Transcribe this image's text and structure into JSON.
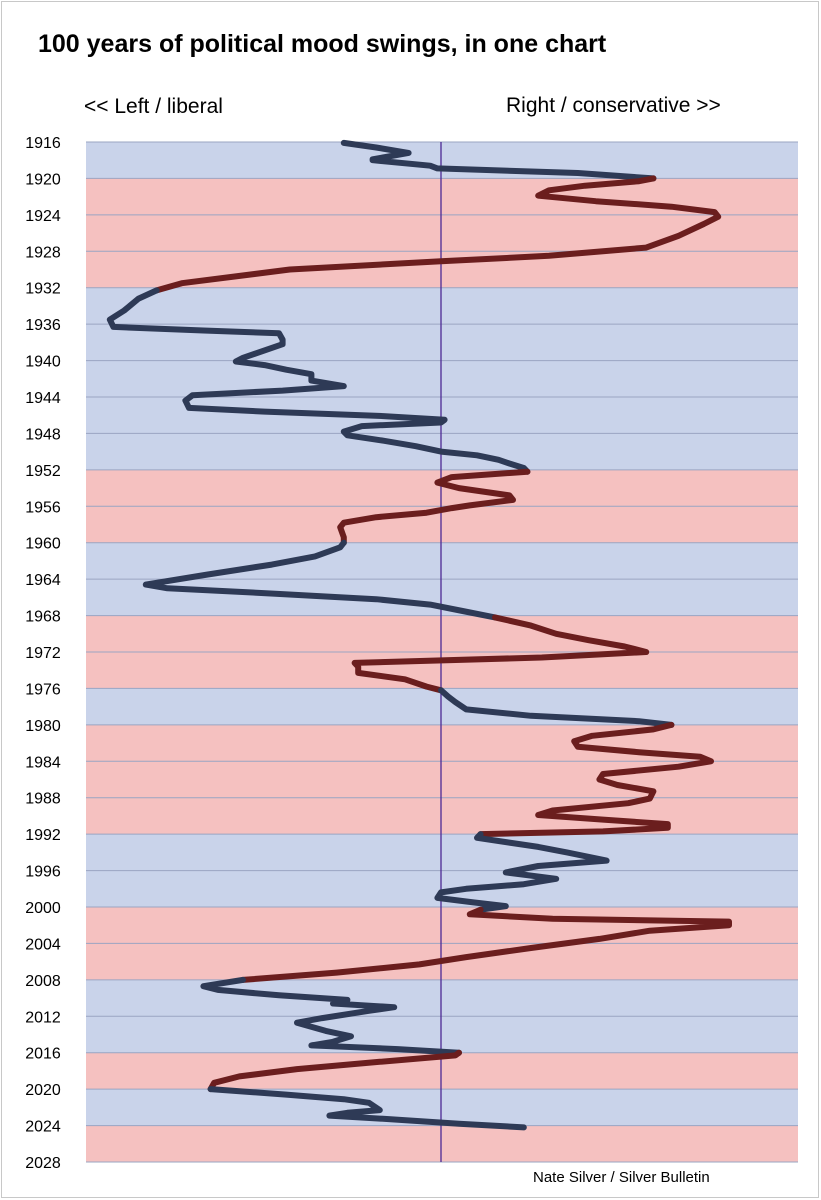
{
  "chart_data": {
    "type": "line",
    "title": "100 years of political mood swings, in one chart",
    "left_label": "<< Left / liberal",
    "right_label": "Right / conservative >>",
    "credit": "Nate Silver / Silver Bulletin",
    "y_axis": {
      "min": 1916,
      "max": 2028,
      "step": 4,
      "reversed": true,
      "tick_labels": [
        "1916",
        "1920",
        "1924",
        "1928",
        "1932",
        "1936",
        "1940",
        "1944",
        "1948",
        "1952",
        "1956",
        "1960",
        "1964",
        "1968",
        "1972",
        "1976",
        "1980",
        "1984",
        "1988",
        "1992",
        "1996",
        "2000",
        "2004",
        "2008",
        "2012",
        "2016",
        "2020",
        "2024",
        "2028"
      ]
    },
    "x_axis": {
      "min": -1.0,
      "max": 1.0,
      "center": 0,
      "tick_labels": []
    },
    "grid": true,
    "party_bands": [
      {
        "from": 1916,
        "to": 1920,
        "party": "D"
      },
      {
        "from": 1920,
        "to": 1932,
        "party": "R"
      },
      {
        "from": 1932,
        "to": 1952,
        "party": "D"
      },
      {
        "from": 1952,
        "to": 1960,
        "party": "R"
      },
      {
        "from": 1960,
        "to": 1968,
        "party": "D"
      },
      {
        "from": 1968,
        "to": 1976,
        "party": "R"
      },
      {
        "from": 1976,
        "to": 1980,
        "party": "D"
      },
      {
        "from": 1980,
        "to": 1992,
        "party": "R"
      },
      {
        "from": 1992,
        "to": 2000,
        "party": "D"
      },
      {
        "from": 2000,
        "to": 2008,
        "party": "R"
      },
      {
        "from": 2008,
        "to": 2016,
        "party": "D"
      },
      {
        "from": 2016,
        "to": 2020,
        "party": "R"
      },
      {
        "from": 2020,
        "to": 2024,
        "party": "D"
      },
      {
        "from": 2024,
        "to": 2028,
        "party": "R"
      }
    ],
    "series": [
      {
        "points": [
          [
            1916.1,
            -0.27
          ],
          [
            1916.6,
            -0.18
          ],
          [
            1917.2,
            -0.09
          ],
          [
            1917.9,
            -0.19
          ],
          [
            1918.0,
            -0.19
          ],
          [
            1918.6,
            -0.03
          ],
          [
            1918.9,
            -0.01
          ],
          [
            1919.4,
            0.38
          ],
          [
            1920.0,
            0.59
          ],
          [
            1920.3,
            0.55
          ],
          [
            1920.8,
            0.4
          ],
          [
            1921.3,
            0.3
          ],
          [
            1921.9,
            0.27
          ],
          [
            1922.5,
            0.43
          ],
          [
            1923.1,
            0.64
          ],
          [
            1923.7,
            0.76
          ],
          [
            1924.2,
            0.77
          ],
          [
            1925.0,
            0.73
          ],
          [
            1926.3,
            0.66
          ],
          [
            1927.6,
            0.57
          ],
          [
            1928.5,
            0.3
          ],
          [
            1929.1,
            0.0
          ],
          [
            1930.0,
            -0.42
          ],
          [
            1931.5,
            -0.72
          ],
          [
            1932.3,
            -0.79
          ],
          [
            1933.2,
            -0.84
          ],
          [
            1934.5,
            -0.88
          ],
          [
            1935.5,
            -0.92
          ],
          [
            1936.3,
            -0.91
          ],
          [
            1936.7,
            -0.66
          ],
          [
            1937.0,
            -0.45
          ],
          [
            1937.7,
            -0.44
          ],
          [
            1938.2,
            -0.44
          ],
          [
            1939.7,
            -0.55
          ],
          [
            1940.1,
            -0.57
          ],
          [
            1940.5,
            -0.49
          ],
          [
            1941.0,
            -0.43
          ],
          [
            1941.5,
            -0.36
          ],
          [
            1942.2,
            -0.36
          ],
          [
            1942.8,
            -0.27
          ],
          [
            1943.3,
            -0.44
          ],
          [
            1943.8,
            -0.69
          ],
          [
            1944.4,
            -0.71
          ],
          [
            1945.2,
            -0.7
          ],
          [
            1945.6,
            -0.49
          ],
          [
            1946.1,
            -0.16
          ],
          [
            1946.5,
            0.01
          ],
          [
            1946.8,
            0.0
          ],
          [
            1947.2,
            -0.22
          ],
          [
            1947.8,
            -0.27
          ],
          [
            1948.2,
            -0.26
          ],
          [
            1948.8,
            -0.16
          ],
          [
            1949.4,
            -0.07
          ],
          [
            1950.0,
            0.0
          ],
          [
            1950.4,
            0.1
          ],
          [
            1950.9,
            0.16
          ],
          [
            1951.3,
            0.19
          ],
          [
            1951.8,
            0.23
          ],
          [
            1952.2,
            0.24
          ],
          [
            1952.8,
            0.03
          ],
          [
            1953.4,
            -0.01
          ],
          [
            1954.0,
            0.05
          ],
          [
            1954.8,
            0.19
          ],
          [
            1955.3,
            0.2
          ],
          [
            1955.9,
            0.08
          ],
          [
            1956.2,
            0.03
          ],
          [
            1956.7,
            -0.04
          ],
          [
            1957.2,
            -0.18
          ],
          [
            1957.8,
            -0.27
          ],
          [
            1958.3,
            -0.28
          ],
          [
            1959.4,
            -0.27
          ],
          [
            1960.0,
            -0.27
          ],
          [
            1960.5,
            -0.28
          ],
          [
            1961.5,
            -0.35
          ],
          [
            1962.4,
            -0.47
          ],
          [
            1963.5,
            -0.65
          ],
          [
            1964.4,
            -0.79
          ],
          [
            1964.6,
            -0.82
          ],
          [
            1965.0,
            -0.76
          ],
          [
            1965.6,
            -0.46
          ],
          [
            1966.2,
            -0.18
          ],
          [
            1966.8,
            -0.03
          ],
          [
            1967.5,
            0.06
          ],
          [
            1968.2,
            0.15
          ],
          [
            1969.1,
            0.25
          ],
          [
            1970.0,
            0.32
          ],
          [
            1970.7,
            0.41
          ],
          [
            1971.4,
            0.51
          ],
          [
            1972.0,
            0.57
          ],
          [
            1972.6,
            0.28
          ],
          [
            1973.0,
            -0.07
          ],
          [
            1973.2,
            -0.24
          ],
          [
            1973.6,
            -0.23
          ],
          [
            1974.3,
            -0.23
          ],
          [
            1975.0,
            -0.1
          ],
          [
            1975.8,
            -0.04
          ],
          [
            1976.2,
            0.0
          ],
          [
            1976.9,
            0.02
          ],
          [
            1977.5,
            0.04
          ],
          [
            1978.3,
            0.07
          ],
          [
            1979.0,
            0.25
          ],
          [
            1979.6,
            0.55
          ],
          [
            1980.0,
            0.64
          ],
          [
            1980.5,
            0.59
          ],
          [
            1981.2,
            0.42
          ],
          [
            1981.8,
            0.37
          ],
          [
            1982.4,
            0.38
          ],
          [
            1983.0,
            0.55
          ],
          [
            1983.5,
            0.72
          ],
          [
            1984.0,
            0.75
          ],
          [
            1984.6,
            0.66
          ],
          [
            1985.4,
            0.45
          ],
          [
            1986.0,
            0.44
          ],
          [
            1986.6,
            0.49
          ],
          [
            1987.3,
            0.59
          ],
          [
            1988.1,
            0.58
          ],
          [
            1988.6,
            0.52
          ],
          [
            1989.4,
            0.31
          ],
          [
            1989.9,
            0.27
          ],
          [
            1990.4,
            0.45
          ],
          [
            1990.9,
            0.63
          ],
          [
            1991.3,
            0.63
          ],
          [
            1991.7,
            0.45
          ],
          [
            1992.0,
            0.11
          ],
          [
            1992.4,
            0.1
          ],
          [
            1993.4,
            0.27
          ],
          [
            1994.0,
            0.35
          ],
          [
            1994.9,
            0.46
          ],
          [
            1995.5,
            0.27
          ],
          [
            1996.2,
            0.18
          ],
          [
            1996.9,
            0.32
          ],
          [
            1997.5,
            0.23
          ],
          [
            1998.0,
            0.07
          ],
          [
            1998.4,
            0.0
          ],
          [
            1999.0,
            -0.01
          ],
          [
            1999.5,
            0.09
          ],
          [
            1999.9,
            0.18
          ],
          [
            2000.3,
            0.11
          ],
          [
            2000.8,
            0.08
          ],
          [
            2001.3,
            0.31
          ],
          [
            2001.6,
            0.8
          ],
          [
            2002.0,
            0.8
          ],
          [
            2002.6,
            0.58
          ],
          [
            2003.5,
            0.44
          ],
          [
            2004.5,
            0.25
          ],
          [
            2005.5,
            0.07
          ],
          [
            2006.3,
            -0.06
          ],
          [
            2007.2,
            -0.29
          ],
          [
            2008.0,
            -0.55
          ],
          [
            2008.7,
            -0.66
          ],
          [
            2009.1,
            -0.62
          ],
          [
            2009.7,
            -0.45
          ],
          [
            2010.2,
            -0.26
          ],
          [
            2010.6,
            -0.3
          ],
          [
            2011.0,
            -0.13
          ],
          [
            2011.4,
            -0.2
          ],
          [
            2012.2,
            -0.33
          ],
          [
            2012.7,
            -0.4
          ],
          [
            2013.6,
            -0.32
          ],
          [
            2014.2,
            -0.25
          ],
          [
            2014.8,
            -0.3
          ],
          [
            2015.2,
            -0.36
          ],
          [
            2015.6,
            -0.12
          ],
          [
            2016.0,
            0.05
          ],
          [
            2016.3,
            0.04
          ],
          [
            2017.0,
            -0.17
          ],
          [
            2017.8,
            -0.4
          ],
          [
            2018.6,
            -0.56
          ],
          [
            2019.3,
            -0.63
          ],
          [
            2020.0,
            -0.64
          ],
          [
            2020.6,
            -0.43
          ],
          [
            2021.1,
            -0.27
          ],
          [
            2021.5,
            -0.2
          ],
          [
            2022.3,
            -0.17
          ],
          [
            2022.6,
            -0.26
          ],
          [
            2022.9,
            -0.31
          ],
          [
            2023.3,
            -0.14
          ],
          [
            2023.8,
            0.05
          ],
          [
            2024.2,
            0.23
          ]
        ]
      }
    ],
    "colors": {
      "dem_band": "#c9d3ea",
      "rep_band": "#f5c1c0",
      "dem_line": "#2e3a56",
      "rep_line": "#6b1e1e",
      "center_line": "#4c2a95",
      "grid": "#9aa5c2"
    }
  }
}
